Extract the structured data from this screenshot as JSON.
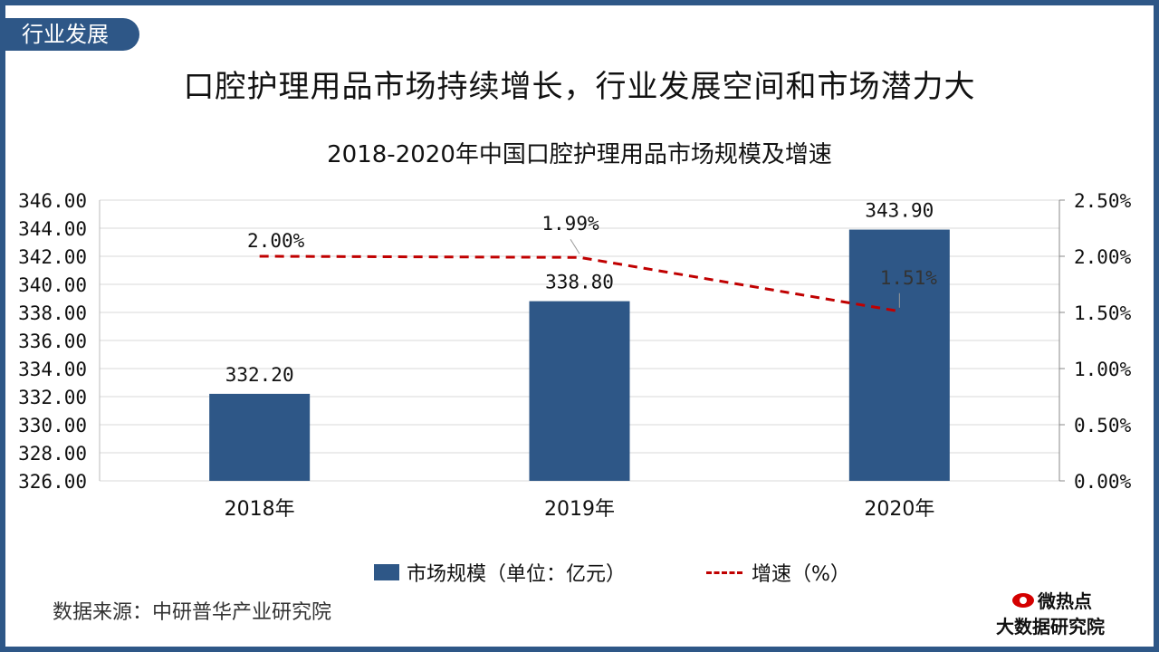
{
  "section_tab": "行业发展",
  "page_title": "口腔护理用品市场持续增长，行业发展空间和市场潜力大",
  "source": "数据来源：中研普华产业研究院",
  "logo": {
    "top": "微热点",
    "bottom": "大数据研究院",
    "icon": "eye-logo-icon"
  },
  "colors": {
    "frame": "#2e5787",
    "bar": "#2e5787",
    "line": "#c00000",
    "grid": "#d9d9d9"
  },
  "chart_data": {
    "type": "bar",
    "title": "2018-2020年中国口腔护理用品市场规模及增速",
    "categories": [
      "2018年",
      "2019年",
      "2020年"
    ],
    "series": [
      {
        "name": "市场规模（单位：亿元）",
        "type": "bar",
        "axis": "left",
        "values": [
          332.2,
          338.8,
          343.9
        ],
        "labels": [
          "332.20",
          "338.80",
          "343.90"
        ]
      },
      {
        "name": "增速（%）",
        "type": "line",
        "style": "dashed",
        "axis": "right",
        "values": [
          2.0,
          1.99,
          1.51
        ],
        "labels": [
          "2.00%",
          "1.99%",
          "1.51%"
        ]
      }
    ],
    "y_left": {
      "min": 326,
      "max": 346,
      "step": 2,
      "tick_labels": [
        "326.00",
        "328.00",
        "330.00",
        "332.00",
        "334.00",
        "336.00",
        "338.00",
        "340.00",
        "342.00",
        "344.00",
        "346.00"
      ]
    },
    "y_right": {
      "min": 0,
      "max": 2.5,
      "step": 0.5,
      "tick_labels": [
        "0.00%",
        "0.50%",
        "1.00%",
        "1.50%",
        "2.00%",
        "2.50%"
      ]
    },
    "grid": true,
    "legend_position": "bottom"
  }
}
